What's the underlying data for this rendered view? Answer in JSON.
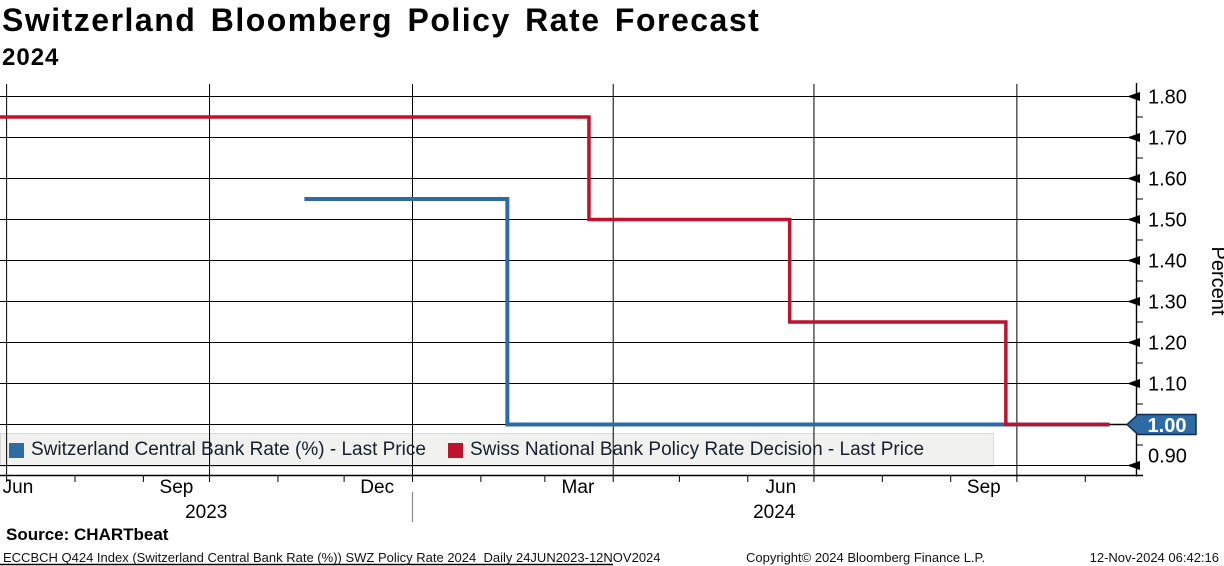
{
  "header": {
    "title": "Switzerland Bloomberg Policy Rate Forecast",
    "subtitle": "2024"
  },
  "y_axis": {
    "title": "Percent",
    "badge_value": "1.00",
    "badge_color": "#2d6ba5"
  },
  "legend": {
    "items": [
      {
        "label": "Switzerland Central Bank Rate (%) - Last Price",
        "color": "#2d6ba5"
      },
      {
        "label": "Swiss National Bank Policy Rate Decision - Last Price",
        "color": "#bf132d"
      }
    ]
  },
  "footer": {
    "source": "Source: CHARTbeat",
    "ticker_info": "ECCBCH Q424 Index (Switzerland Central Bank Rate (%)) SWZ Policy Rate 2024  Daily 24JUN2023-12NOV2024",
    "copyright": "Copyright© 2024 Bloomberg Finance L.P.",
    "timestamp": "12-Nov-2024 06:42:16"
  },
  "chart_data": {
    "type": "line",
    "step": true,
    "title": "Switzerland Bloomberg Policy Rate Forecast 2024",
    "ylabel": "Percent",
    "ylim": [
      0.9,
      1.8
    ],
    "y_ticks": [
      1.8,
      1.7,
      1.6,
      1.5,
      1.4,
      1.3,
      1.2,
      1.1,
      1.0,
      0.9
    ],
    "grid": true,
    "legend_position": "bottom-inside",
    "x_domain": [
      "2023-06-28",
      "2024-11-24"
    ],
    "x_month_labels": [
      {
        "label": "Jun",
        "date": "2023-07-06"
      },
      {
        "label": "Sep",
        "date": "2023-09-16"
      },
      {
        "label": "Dec",
        "date": "2023-12-16"
      },
      {
        "label": "Mar",
        "date": "2024-03-16"
      },
      {
        "label": "Jun",
        "date": "2024-06-16"
      },
      {
        "label": "Sep",
        "date": "2024-09-16"
      }
    ],
    "x_year_labels": [
      {
        "label": "2023",
        "span": [
          "2023-06-28",
          "2024-01-01"
        ]
      },
      {
        "label": "2024",
        "span": [
          "2024-01-01",
          "2024-11-24"
        ]
      }
    ],
    "series": [
      {
        "name": "Switzerland Central Bank Rate (%) - Last Price",
        "color": "#2d6ba5",
        "points": [
          [
            "2023-11-13",
            1.55
          ],
          [
            "2024-02-13",
            1.0
          ],
          [
            "2024-11-12",
            1.0
          ]
        ]
      },
      {
        "name": "Swiss National Bank Policy Rate Decision - Last Price",
        "color": "#bf132d",
        "points": [
          [
            "2023-06-24",
            1.75
          ],
          [
            "2024-03-21",
            1.5
          ],
          [
            "2024-06-20",
            1.25
          ],
          [
            "2024-09-26",
            1.0
          ],
          [
            "2024-11-12",
            1.0
          ]
        ]
      }
    ],
    "last_value": 1.0
  }
}
